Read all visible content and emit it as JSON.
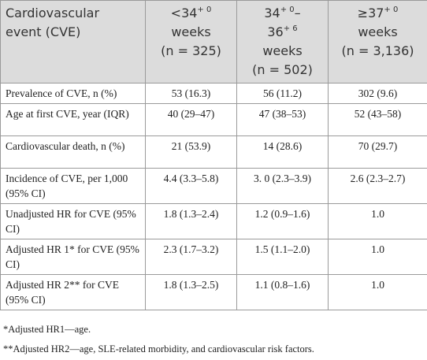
{
  "table": {
    "header": [
      {
        "lines": [
          {
            "text": "Cardiovascular"
          },
          {
            "text": "event (CVE)"
          }
        ]
      },
      {
        "lines": [
          {
            "text": "<34",
            "sup": "+ 0"
          },
          {
            "text": "weeks"
          },
          {
            "text": "(n = 325)"
          }
        ]
      },
      {
        "lines": [
          {
            "text": "34",
            "sup": "+ 0",
            "after": "–"
          },
          {
            "text": "36",
            "sup": "+ 6"
          },
          {
            "text": "weeks"
          },
          {
            "text": "(n = 502)"
          }
        ]
      },
      {
        "lines": [
          {
            "text": "≥37",
            "sup": "+ 0"
          },
          {
            "text": "weeks"
          },
          {
            "text": "(n = 3,136)"
          }
        ]
      }
    ],
    "rows": [
      [
        "Prevalence of CVE, n (%)",
        "53 (16.3)",
        "56 (11.2)",
        "302 (9.6)"
      ],
      [
        "Age at first CVE, year (IQR)",
        "40 (29–47)",
        "47 (38–53)",
        "52 (43–58)"
      ],
      [
        "Cardiovascular death, n (%)",
        "21 (53.9)",
        "14 (28.6)",
        "70 (29.7)"
      ],
      [
        "Incidence of CVE, per 1,000 (95% CI)",
        "4.4 (3.3–5.8)",
        "3. 0 (2.3–3.9)",
        "2.6 (2.3–2.7)"
      ],
      [
        "Unadjusted HR for CVE (95% CI)",
        "1.8 (1.3–2.4)",
        "1.2 (0.9–1.6)",
        "1.0"
      ],
      [
        "Adjusted HR 1* for CVE (95% CI)",
        "2.3 (1.7–3.2)",
        "1.5 (1.1–2.0)",
        "1.0"
      ],
      [
        "Adjusted HR 2** for CVE (95% CI)",
        "1.8 (1.3–2.5)",
        "1.1 (0.8–1.6)",
        "1.0"
      ]
    ]
  },
  "footnotes": [
    "*Adjusted HR1—age.",
    "**Adjusted HR2—age, SLE-related morbidity, and cardiovascular risk factors."
  ]
}
